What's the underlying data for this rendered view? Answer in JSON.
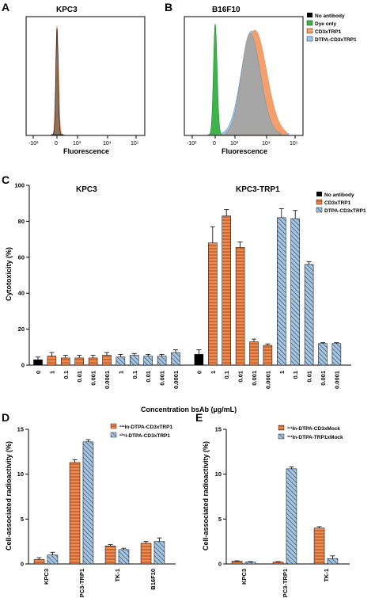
{
  "panels": {
    "A": "A",
    "B": "B",
    "C": "C",
    "D": "D",
    "E": "E"
  },
  "colors": {
    "black": "#000000",
    "green": "#3cb44b",
    "orange": "#f4a06e",
    "gray": "#a6a6a6",
    "bar_orange": "#f08a50",
    "bar_blue": "#a9c6e0"
  },
  "chart_data": [
    {
      "id": "A",
      "type": "area",
      "title": "KPC3",
      "xlabel": "Fluorescence",
      "ylabel": "",
      "x_ticks": [
        "-10³",
        "0",
        "10³",
        "10⁴",
        "10⁵"
      ],
      "series": [
        {
          "name": "No antibody",
          "color": "#000000",
          "peak_center": 0,
          "peak_width": 0.08
        },
        {
          "name": "CD3xTRP1",
          "color": "#f4a06e",
          "peak_center": 0,
          "peak_width": 0.09
        }
      ]
    },
    {
      "id": "B",
      "type": "area",
      "title": "B16F10",
      "xlabel": "Fluorescence",
      "ylabel": "",
      "x_ticks": [
        "-10³",
        "0",
        "10³",
        "10⁴",
        "10⁵"
      ],
      "legend": [
        {
          "label": "No antibody",
          "color": "#000000"
        },
        {
          "label": "Dye only",
          "color": "#3cb44b"
        },
        {
          "label": "CD3xTRP1",
          "color": "#f4a06e"
        },
        {
          "label": "DTPA-CD3xTRP1",
          "color": "#9ec7ea"
        }
      ]
    },
    {
      "id": "C",
      "type": "bar",
      "group_titles": [
        "KPC3",
        "KPC3-TRP1"
      ],
      "xlabel": "Concentration bsAb (µg/mL)",
      "ylabel": "Cytotoxicity (%)",
      "ylim": [
        0,
        100
      ],
      "yticks": [
        0,
        20,
        40,
        60,
        80,
        100
      ],
      "legend": [
        "No antibody",
        "CD3xTRP1",
        "DTPA-CD3xTRP1"
      ],
      "categories": [
        "0",
        "1",
        "0.1",
        "0.01",
        "0.001",
        "0.0001",
        "1",
        "0.1",
        "0.01",
        "0.001",
        "0.0001",
        "0",
        "1",
        "0.1",
        "0.01",
        "0.001",
        "0.0001",
        "1",
        "0.1",
        "0.01",
        "0.001",
        "0.0001"
      ],
      "values": [
        3,
        5,
        4,
        4,
        4,
        5.5,
        4.5,
        5.5,
        5,
        5,
        7,
        6,
        68,
        83,
        65.5,
        13,
        11,
        82,
        81.5,
        56,
        12,
        12
      ],
      "errors": [
        1.5,
        2,
        1.5,
        1.5,
        1.5,
        1.5,
        1.5,
        1,
        1,
        1,
        1.5,
        2.5,
        9,
        3.5,
        3,
        1.5,
        0.8,
        5,
        4.5,
        1.5,
        0.5,
        0.5
      ],
      "series": [
        "No antibody",
        "CD3xTRP1",
        "CD3xTRP1",
        "CD3xTRP1",
        "CD3xTRP1",
        "CD3xTRP1",
        "DTPA-CD3xTRP1",
        "DTPA-CD3xTRP1",
        "DTPA-CD3xTRP1",
        "DTPA-CD3xTRP1",
        "DTPA-CD3xTRP1",
        "No antibody",
        "CD3xTRP1",
        "CD3xTRP1",
        "CD3xTRP1",
        "CD3xTRP1",
        "CD3xTRP1",
        "DTPA-CD3xTRP1",
        "DTPA-CD3xTRP1",
        "DTPA-CD3xTRP1",
        "DTPA-CD3xTRP1",
        "DTPA-CD3xTRP1"
      ]
    },
    {
      "id": "D",
      "type": "bar",
      "ylabel": "Cell-associated radioactivity (%)",
      "ylim": [
        0,
        15
      ],
      "yticks": [
        0,
        5,
        10,
        15
      ],
      "categories": [
        "KPC3",
        "KPC3-TRP1",
        "TK-1",
        "B16F10"
      ],
      "series": [
        {
          "name": "¹¹¹In-DTPA-CD3xTRP1",
          "values": [
            0.5,
            11.3,
            2.0,
            2.3
          ],
          "errors": [
            0.2,
            0.3,
            0.15,
            0.2
          ]
        },
        {
          "name": "¹²⁵I-DTPA-CD3xTRP1",
          "values": [
            1.0,
            13.6,
            1.6,
            2.5
          ],
          "errors": [
            0.3,
            0.25,
            0.15,
            0.4
          ]
        }
      ]
    },
    {
      "id": "E",
      "type": "bar",
      "ylabel": "Cell-associated radioactivity (%)",
      "ylim": [
        0,
        15
      ],
      "yticks": [
        0,
        5,
        10,
        15
      ],
      "categories": [
        "KPC3",
        "KPC3-TRP1",
        "TK-1"
      ],
      "series": [
        {
          "name": "¹¹¹In-DTPA-CD3xMock",
          "values": [
            0.3,
            0.2,
            4.0
          ],
          "errors": [
            0.05,
            0.05,
            0.15
          ]
        },
        {
          "name": "¹¹¹In-DTPA-TRP1xMock",
          "values": [
            0.2,
            10.6,
            0.6
          ],
          "errors": [
            0.05,
            0.2,
            0.3
          ]
        }
      ]
    }
  ]
}
